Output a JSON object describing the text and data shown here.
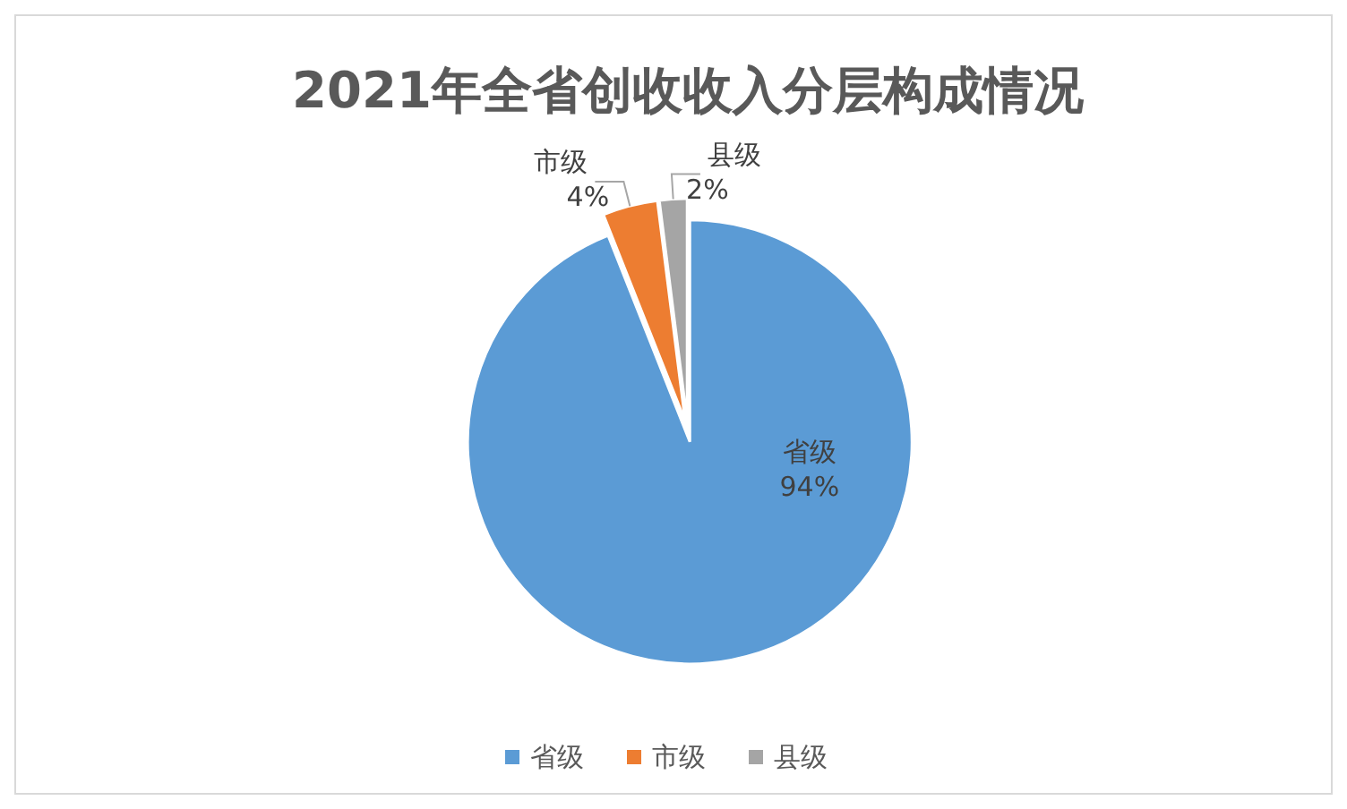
{
  "chart_data": {
    "type": "pie",
    "title": "2021年全省创收收入分层构成情况",
    "categories": [
      "省级",
      "市级",
      "县级"
    ],
    "values": [
      94,
      4,
      2
    ],
    "colors": [
      "#5b9bd5",
      "#ed7d31",
      "#a5a5a5"
    ],
    "value_labels": [
      "94%",
      "4%",
      "2%"
    ],
    "legend": "bottom"
  }
}
